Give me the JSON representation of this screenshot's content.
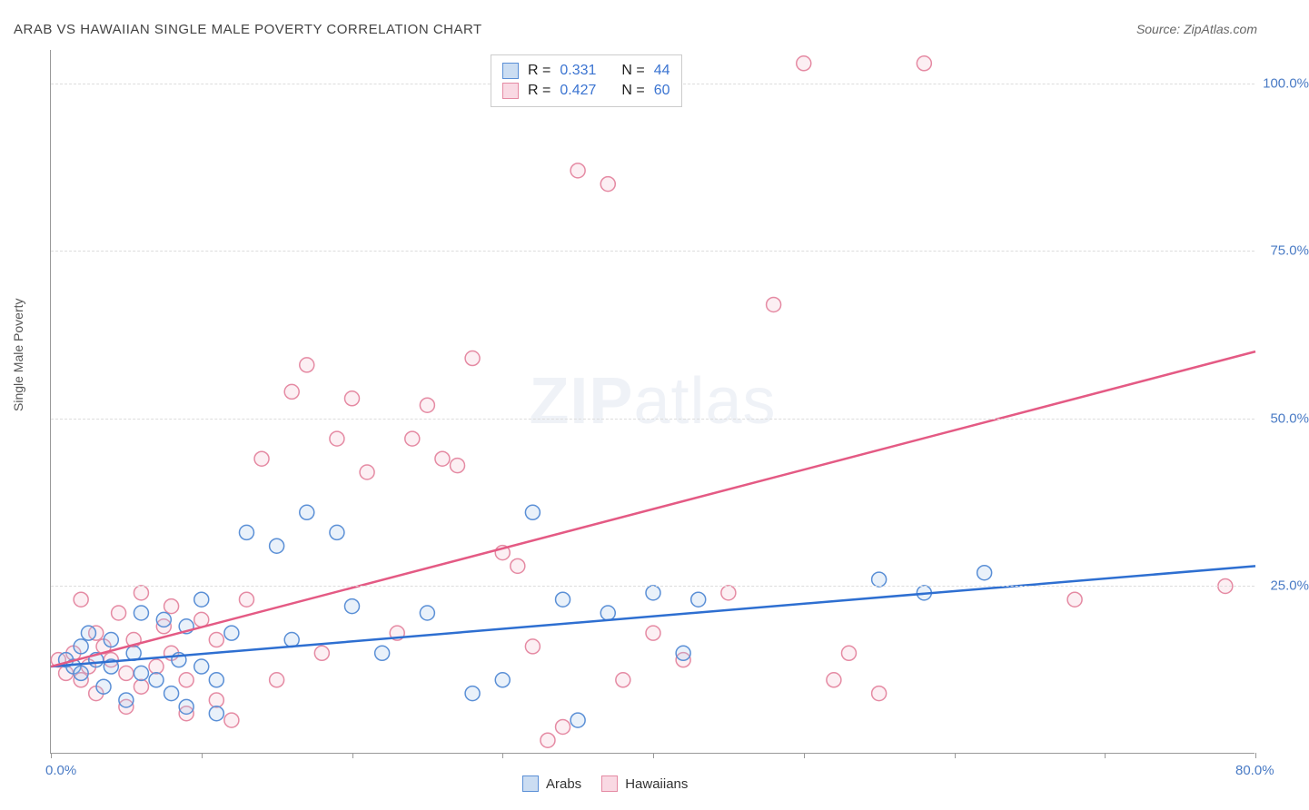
{
  "title": "ARAB VS HAWAIIAN SINGLE MALE POVERTY CORRELATION CHART",
  "source": "Source: ZipAtlas.com",
  "y_axis_title": "Single Male Poverty",
  "watermark": {
    "bold": "ZIP",
    "light": "atlas"
  },
  "chart": {
    "type": "scatter",
    "xlim": [
      0,
      80
    ],
    "ylim": [
      0,
      105
    ],
    "x_ticks": [
      0,
      10,
      20,
      30,
      40,
      50,
      60,
      70,
      80
    ],
    "x_tick_labels": {
      "0": "0.0%",
      "80": "80.0%"
    },
    "y_gridlines": [
      25,
      50,
      75,
      100
    ],
    "y_tick_labels": {
      "25": "25.0%",
      "50": "50.0%",
      "75": "75.0%",
      "100": "100.0%"
    },
    "background_color": "#ffffff",
    "grid_color": "#dddddd",
    "axis_color": "#999999",
    "label_color": "#4a7bc5",
    "marker_radius": 8,
    "marker_stroke_width": 1.5,
    "marker_fill_opacity": 0.25,
    "line_width": 2.5
  },
  "series": {
    "arabs": {
      "label": "Arabs",
      "color_stroke": "#5a8fd6",
      "color_fill": "#a9c6ea",
      "R": "0.331",
      "N": "44",
      "trend": {
        "x1": 0,
        "y1": 13,
        "x2": 80,
        "y2": 28
      },
      "points": [
        [
          1,
          14
        ],
        [
          1.5,
          13
        ],
        [
          2,
          12
        ],
        [
          2,
          16
        ],
        [
          2.5,
          18
        ],
        [
          3,
          14
        ],
        [
          3.5,
          10
        ],
        [
          4,
          13
        ],
        [
          4,
          17
        ],
        [
          5,
          8
        ],
        [
          5.5,
          15
        ],
        [
          6,
          12
        ],
        [
          6,
          21
        ],
        [
          7,
          11
        ],
        [
          7.5,
          20
        ],
        [
          8,
          9
        ],
        [
          8.5,
          14
        ],
        [
          9,
          19
        ],
        [
          9,
          7
        ],
        [
          10,
          13
        ],
        [
          10,
          23
        ],
        [
          11,
          11
        ],
        [
          11,
          6
        ],
        [
          12,
          18
        ],
        [
          13,
          33
        ],
        [
          15,
          31
        ],
        [
          16,
          17
        ],
        [
          17,
          36
        ],
        [
          19,
          33
        ],
        [
          20,
          22
        ],
        [
          22,
          15
        ],
        [
          25,
          21
        ],
        [
          28,
          9
        ],
        [
          30,
          11
        ],
        [
          32,
          36
        ],
        [
          34,
          23
        ],
        [
          35,
          5
        ],
        [
          37,
          21
        ],
        [
          40,
          24
        ],
        [
          42,
          15
        ],
        [
          43,
          23
        ],
        [
          55,
          26
        ],
        [
          58,
          24
        ],
        [
          62,
          27
        ]
      ]
    },
    "hawaiians": {
      "label": "Hawaiians",
      "color_stroke": "#e58aa3",
      "color_fill": "#f5bfd0",
      "R": "0.427",
      "N": "60",
      "trend": {
        "x1": 0,
        "y1": 13,
        "x2": 80,
        "y2": 60
      },
      "points": [
        [
          0.5,
          14
        ],
        [
          1,
          12
        ],
        [
          1.5,
          15
        ],
        [
          2,
          11
        ],
        [
          2,
          23
        ],
        [
          2.5,
          13
        ],
        [
          3,
          18
        ],
        [
          3,
          9
        ],
        [
          3.5,
          16
        ],
        [
          4,
          14
        ],
        [
          4.5,
          21
        ],
        [
          5,
          12
        ],
        [
          5,
          7
        ],
        [
          5.5,
          17
        ],
        [
          6,
          10
        ],
        [
          6,
          24
        ],
        [
          7,
          13
        ],
        [
          7.5,
          19
        ],
        [
          8,
          15
        ],
        [
          8,
          22
        ],
        [
          9,
          11
        ],
        [
          9,
          6
        ],
        [
          10,
          20
        ],
        [
          11,
          8
        ],
        [
          11,
          17
        ],
        [
          12,
          5
        ],
        [
          13,
          23
        ],
        [
          14,
          44
        ],
        [
          15,
          11
        ],
        [
          16,
          54
        ],
        [
          17,
          58
        ],
        [
          18,
          15
        ],
        [
          19,
          47
        ],
        [
          20,
          53
        ],
        [
          21,
          42
        ],
        [
          23,
          18
        ],
        [
          24,
          47
        ],
        [
          25,
          52
        ],
        [
          26,
          44
        ],
        [
          27,
          43
        ],
        [
          28,
          59
        ],
        [
          30,
          30
        ],
        [
          31,
          28
        ],
        [
          32,
          16
        ],
        [
          33,
          2
        ],
        [
          34,
          4
        ],
        [
          35,
          87
        ],
        [
          37,
          85
        ],
        [
          38,
          11
        ],
        [
          40,
          18
        ],
        [
          42,
          14
        ],
        [
          45,
          24
        ],
        [
          48,
          67
        ],
        [
          50,
          103
        ],
        [
          52,
          11
        ],
        [
          53,
          15
        ],
        [
          55,
          9
        ],
        [
          58,
          103
        ],
        [
          68,
          23
        ],
        [
          78,
          25
        ]
      ]
    }
  },
  "top_legend": {
    "r_label": "R  =",
    "n_label": "N  ="
  }
}
